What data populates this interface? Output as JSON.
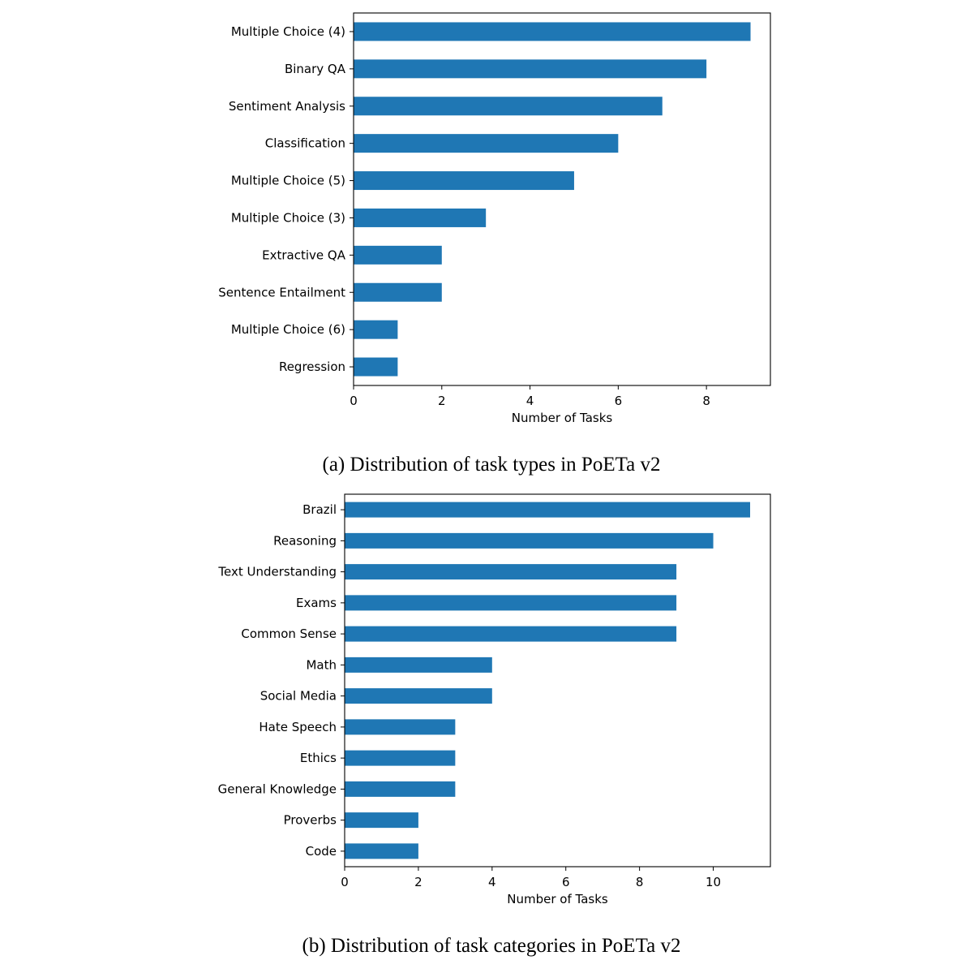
{
  "chart_data": [
    {
      "type": "bar",
      "orientation": "horizontal",
      "caption": "(a) Distribution of task types in PoETa v2",
      "xlabel": "Number of Tasks",
      "ylabel": "",
      "xlim": [
        0,
        9.45
      ],
      "xticks": [
        0,
        2,
        4,
        6,
        8
      ],
      "grid": false,
      "color": "#1f77b4",
      "categories": [
        "Multiple Choice (4)",
        "Binary QA",
        "Sentiment Analysis",
        "Classification",
        "Multiple Choice (5)",
        "Multiple Choice (3)",
        "Extractive QA",
        "Sentence Entailment",
        "Multiple Choice (6)",
        "Regression"
      ],
      "values": [
        9,
        8,
        7,
        6,
        5,
        3,
        2,
        2,
        1,
        1
      ]
    },
    {
      "type": "bar",
      "orientation": "horizontal",
      "caption": "(b) Distribution of task categories in PoETa v2",
      "xlabel": "Number of Tasks",
      "ylabel": "",
      "xlim": [
        0,
        11.55
      ],
      "xticks": [
        0,
        2,
        4,
        6,
        8,
        10
      ],
      "grid": false,
      "color": "#1f77b4",
      "categories": [
        "Brazil",
        "Reasoning",
        "Text Understanding",
        "Exams",
        "Common Sense",
        "Math",
        "Social Media",
        "Hate Speech",
        "Ethics",
        "General Knowledge",
        "Proverbs",
        "Code"
      ],
      "values": [
        11,
        10,
        9,
        9,
        9,
        4,
        4,
        3,
        3,
        3,
        2,
        2
      ]
    }
  ]
}
